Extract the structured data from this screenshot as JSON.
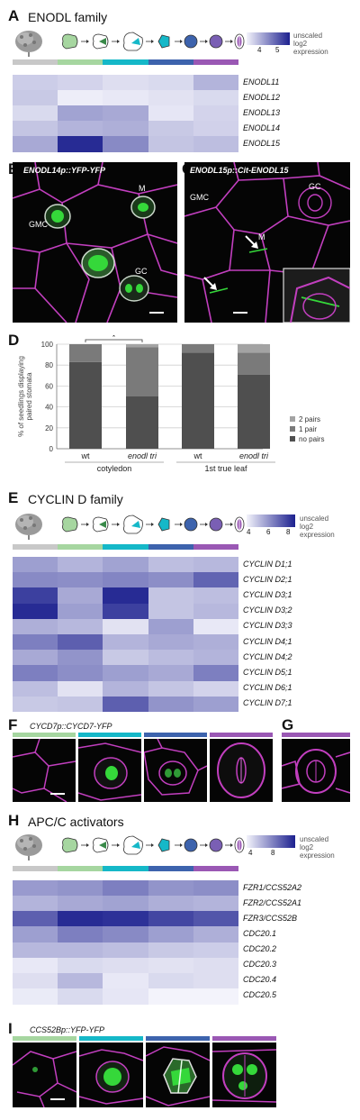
{
  "colors": {
    "stage": [
      "#c8c8c8",
      "#a6d6a0",
      "#15b8c8",
      "#3d63ad",
      "#9a58b4"
    ],
    "heat_low": "#f3f3fb",
    "heat_high": "#1c208f",
    "micro_bg": "#050505",
    "membrane": "#c23fbf",
    "yfp": "#35d83a",
    "bar_2pairs": "#a3a3a3",
    "bar_1pair": "#7a7a7a",
    "bar_nopairs": "#4f4f4f"
  },
  "panelA": {
    "letter": "A",
    "title": "ENODL family",
    "legend": {
      "ticks": [
        "4",
        "5"
      ],
      "label_lines": [
        "unscaled",
        "log2",
        "expression"
      ]
    },
    "genes": [
      "ENODL11",
      "ENODL12",
      "ENODL13",
      "ENODL14",
      "ENODL15"
    ],
    "matrix": [
      [
        0.18,
        0.15,
        0.1,
        0.12,
        0.3
      ],
      [
        0.2,
        0.03,
        0.05,
        0.08,
        0.12
      ],
      [
        0.12,
        0.38,
        0.35,
        0.06,
        0.15
      ],
      [
        0.22,
        0.3,
        0.32,
        0.2,
        0.16
      ],
      [
        0.35,
        0.95,
        0.5,
        0.22,
        0.25
      ]
    ]
  },
  "panelB": {
    "letter": "B",
    "label": "ENODL14p::YFP-YFP",
    "cells": [
      "M",
      "GMC",
      "GC"
    ]
  },
  "panelC": {
    "letter": "C",
    "label": "ENODL15p::Cit-ENODL15",
    "cells": [
      "GMC",
      "GC",
      "M"
    ]
  },
  "panelD": {
    "letter": "D",
    "chart_data": {
      "type": "bar",
      "stacked": true,
      "ylabel": "% of seedlings displaying paired stomata",
      "ylim": [
        0,
        100
      ],
      "yticks": [
        "0",
        "20",
        "40",
        "60",
        "80",
        "100"
      ],
      "categories": [
        "wt",
        "enodl tri",
        "wt",
        "enodl tri"
      ],
      "groups": [
        "cotyledon",
        "1st true leaf"
      ],
      "series": [
        {
          "name": "no pairs",
          "values": [
            83,
            50,
            92,
            71
          ]
        },
        {
          "name": "1 pair",
          "values": [
            17,
            47,
            8,
            21
          ]
        },
        {
          "name": "2 pairs",
          "values": [
            0,
            3,
            0,
            8
          ]
        }
      ],
      "significance": "*",
      "legend_position": "right"
    }
  },
  "panelE": {
    "letter": "E",
    "title": "CYCLIN D family",
    "legend": {
      "ticks": [
        "4",
        "6",
        "8"
      ],
      "label_lines": [
        "unscaled",
        "log2",
        "expression"
      ]
    },
    "genes": [
      "CYCLIN D1;1",
      "CYCLIN D2;1",
      "CYCLIN D3;1",
      "CYCLIN D3;2",
      "CYCLIN D3;3",
      "CYCLIN D4;1",
      "CYCLIN D4;2",
      "CYCLIN D5;1",
      "CYCLIN D6;1",
      "CYCLIN D7;1"
    ],
    "matrix": [
      [
        0.4,
        0.3,
        0.38,
        0.25,
        0.28
      ],
      [
        0.5,
        0.48,
        0.52,
        0.48,
        0.68
      ],
      [
        0.85,
        0.35,
        0.95,
        0.22,
        0.25
      ],
      [
        0.95,
        0.4,
        0.85,
        0.22,
        0.28
      ],
      [
        0.32,
        0.28,
        0.08,
        0.4,
        0.05
      ],
      [
        0.55,
        0.7,
        0.3,
        0.35,
        0.32
      ],
      [
        0.35,
        0.45,
        0.2,
        0.26,
        0.3
      ],
      [
        0.55,
        0.48,
        0.4,
        0.35,
        0.55
      ],
      [
        0.25,
        0.08,
        0.3,
        0.22,
        0.15
      ],
      [
        0.2,
        0.22,
        0.7,
        0.45,
        0.4
      ]
    ]
  },
  "panelF": {
    "letter": "F",
    "label": "CYCD7p::CYCD7-YFP"
  },
  "panelG": {
    "letter": "G"
  },
  "panelH": {
    "letter": "H",
    "title": "APC/C activators",
    "legend": {
      "ticks": [
        "4",
        "8"
      ],
      "label_lines": [
        "unscaled",
        "log2",
        "expression"
      ]
    },
    "genes": [
      "FZR1/CCS52A2",
      "FZR2/CCS52A1",
      "FZR3/CCS52B",
      "CDC20.1",
      "CDC20.2",
      "CDC20.3",
      "CDC20.4",
      "CDC20.5"
    ],
    "matrix": [
      [
        0.42,
        0.45,
        0.55,
        0.45,
        0.48
      ],
      [
        0.3,
        0.35,
        0.38,
        0.32,
        0.3
      ],
      [
        0.7,
        0.95,
        0.92,
        0.82,
        0.75
      ],
      [
        0.4,
        0.55,
        0.5,
        0.4,
        0.32
      ],
      [
        0.28,
        0.28,
        0.25,
        0.2,
        0.18
      ],
      [
        0.05,
        0.12,
        0.1,
        0.08,
        0.1
      ],
      [
        0.1,
        0.28,
        0.05,
        0.12,
        0.1
      ],
      [
        0.04,
        0.12,
        0.06,
        0.0,
        0.0
      ]
    ]
  },
  "panelI": {
    "letter": "I",
    "label": "CCS52Bp::YFP-YFP"
  }
}
